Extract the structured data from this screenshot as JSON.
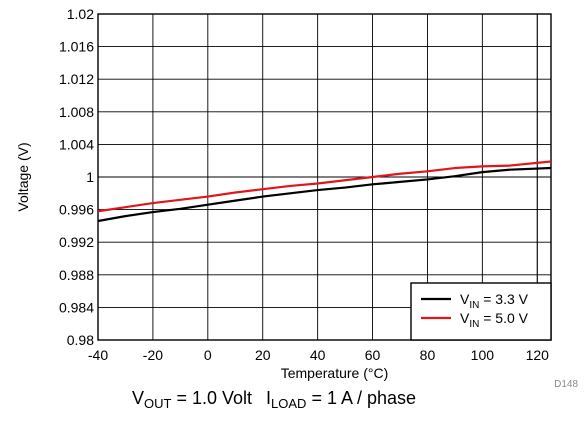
{
  "chart_data": {
    "type": "line",
    "xlabel": "Temperature (°C)",
    "ylabel": "Voltage (V)",
    "xlim": [
      -40,
      125
    ],
    "ylim": [
      0.98,
      1.02
    ],
    "x_ticks": [
      "-40",
      "-20",
      "0",
      "20",
      "40",
      "60",
      "80",
      "100",
      "120"
    ],
    "y_ticks": [
      "0.98",
      "0.984",
      "0.988",
      "0.992",
      "0.996",
      "1",
      "1.004",
      "1.008",
      "1.012",
      "1.016",
      "1.02"
    ],
    "grid": true,
    "legend_position": "bottom-right",
    "series": [
      {
        "name": "VIN = 3.3 V",
        "label_main": "V",
        "label_sub": "IN",
        "label_rest": " = 3.3 V",
        "color": "#000000",
        "points": [
          [
            -40,
            0.9946
          ],
          [
            -30,
            0.9952
          ],
          [
            -20,
            0.9957
          ],
          [
            -10,
            0.9961
          ],
          [
            0,
            0.9966
          ],
          [
            10,
            0.9971
          ],
          [
            20,
            0.9976
          ],
          [
            30,
            0.998
          ],
          [
            40,
            0.9984
          ],
          [
            50,
            0.9987
          ],
          [
            60,
            0.9991
          ],
          [
            70,
            0.9994
          ],
          [
            80,
            0.9997
          ],
          [
            90,
            1.0001
          ],
          [
            100,
            1.0006
          ],
          [
            110,
            1.0009
          ],
          [
            125,
            1.0011
          ]
        ]
      },
      {
        "name": "VIN = 5.0 V",
        "label_main": "V",
        "label_sub": "IN",
        "label_rest": " = 5.0 V",
        "color": "#e0161b",
        "points": [
          [
            -40,
            0.9958
          ],
          [
            -30,
            0.9963
          ],
          [
            -20,
            0.9968
          ],
          [
            -10,
            0.9972
          ],
          [
            0,
            0.9976
          ],
          [
            10,
            0.9981
          ],
          [
            20,
            0.9985
          ],
          [
            30,
            0.9989
          ],
          [
            40,
            0.9992
          ],
          [
            50,
            0.9996
          ],
          [
            60,
            1.0
          ],
          [
            70,
            1.0004
          ],
          [
            80,
            1.0007
          ],
          [
            90,
            1.0011
          ],
          [
            100,
            1.0013
          ],
          [
            110,
            1.0014
          ],
          [
            125,
            1.0019
          ]
        ]
      }
    ],
    "figure_id": "D148",
    "caption": {
      "part1_main": "V",
      "part1_sub": "OUT",
      "part1_rest": " = 1.0 Volt",
      "part2_main": "I",
      "part2_sub": "LOAD",
      "part2_rest": " = 1 A / phase"
    }
  }
}
